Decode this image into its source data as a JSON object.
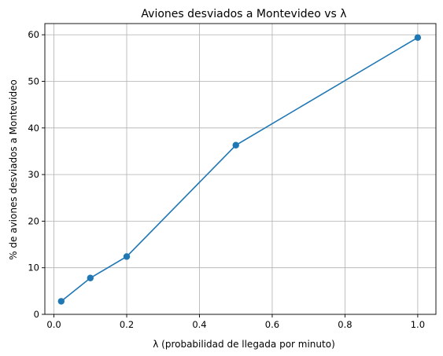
{
  "chart_data": {
    "type": "line",
    "title": "Aviones desviados a Montevideo vs λ",
    "xlabel": "λ (probabilidad de llegada por minuto)",
    "ylabel": "% de aviones desviados a Montevideo",
    "xlim": [
      -0.025,
      1.05
    ],
    "ylim": [
      0,
      62.4
    ],
    "xticks": [
      0.0,
      0.2,
      0.4,
      0.6,
      0.8,
      1.0
    ],
    "xtick_labels": [
      "0.0",
      "0.2",
      "0.4",
      "0.6",
      "0.8",
      "1.0"
    ],
    "yticks": [
      0,
      10,
      20,
      30,
      40,
      50,
      60
    ],
    "ytick_labels": [
      "0",
      "10",
      "20",
      "30",
      "40",
      "50",
      "60"
    ],
    "grid": true,
    "series": [
      {
        "color": "#1f77b4",
        "marker": "circle",
        "x": [
          0.02,
          0.1,
          0.2,
          0.5,
          1.0
        ],
        "y": [
          2.8,
          7.8,
          12.4,
          36.3,
          59.4
        ]
      }
    ]
  }
}
